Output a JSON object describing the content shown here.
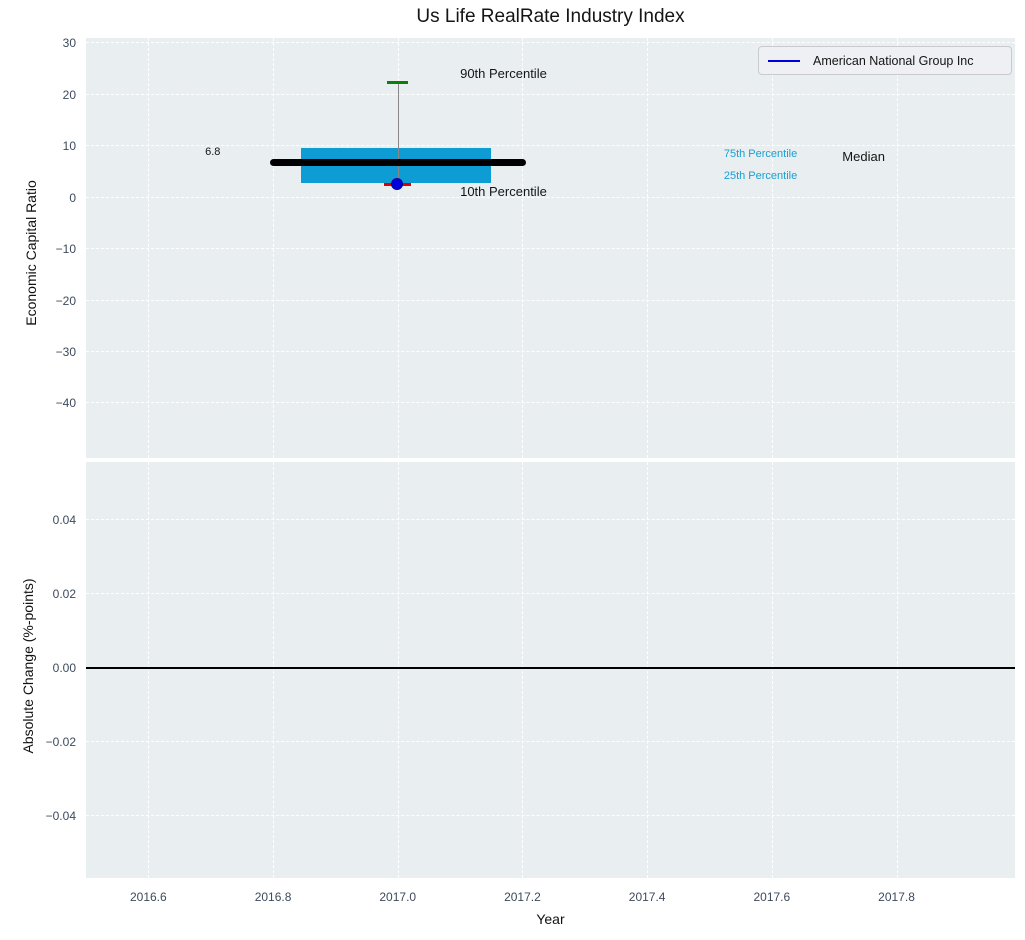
{
  "title": "Us Life RealRate Industry Index",
  "legend": {
    "label": "American National Group Inc",
    "line_color": "#0000dd"
  },
  "colors": {
    "axes_background": "#e9eef0",
    "grid": "#ffffff",
    "box_fill": "#0d9cd3",
    "median_line": "#000000",
    "p90_tick": "#0a7f0a",
    "p10_tick": "#dd0000",
    "marker_fill": "#0000dd",
    "marker_edge": "#0000a0",
    "percentile_label": "#18a0d4",
    "tick_label": "#3d4a5c",
    "zero_line": "#000000",
    "whisker_stem": "#888888"
  },
  "chart_data": [
    {
      "type": "box_percentile",
      "ylabel": "Economic Capital Ratio",
      "ylim": [
        -50.6,
        31.0
      ],
      "yticks": [
        30,
        20,
        10,
        0,
        -10,
        -20,
        -30,
        -40
      ],
      "ytick_labels": [
        "30",
        "20",
        "10",
        "0",
        "−10",
        "−20",
        "−30",
        "−40"
      ],
      "xlim": [
        2016.5,
        2017.99
      ],
      "xgrid": [
        2016.6,
        2016.8,
        2017.0,
        2017.2,
        2017.4,
        2017.6,
        2017.8
      ],
      "grid": true,
      "legend_position": "upper right",
      "series": {
        "name": "American National Group Inc",
        "x": 2017.0,
        "company_value": 2.5,
        "p10": 2.6,
        "p25": 2.9,
        "median": 6.8,
        "p75": 9.6,
        "p90": 22.3,
        "box_left": 2016.845,
        "box_right": 2017.149,
        "median_left": 2016.795,
        "median_right": 2017.205,
        "p90_halfwidth": 0.017,
        "p10_halfwidth": 0.022
      },
      "annotations": [
        {
          "text": "90th Percentile",
          "x": 2017.1,
          "y": 25.4,
          "color": "#151515",
          "size": 13
        },
        {
          "text": "10th Percentile",
          "x": 2017.1,
          "y": 2.45,
          "color": "#151515",
          "size": 13
        },
        {
          "text": "6.8",
          "x": 2016.691,
          "y": 10.3,
          "color": "#151515",
          "size": 11
        },
        {
          "text": "75th Percentile",
          "x": 2017.523,
          "y": 9.9,
          "color": "#18a0d4",
          "size": 11
        },
        {
          "text": "25th Percentile",
          "x": 2017.523,
          "y": 5.6,
          "color": "#18a0d4",
          "size": 11
        },
        {
          "text": "Median",
          "x": 2017.713,
          "y": 9.2,
          "color": "#151515",
          "size": 13
        }
      ]
    },
    {
      "type": "line",
      "ylabel": "Absolute Change (%-points)",
      "xlabel": "Year",
      "ylim": [
        -0.0566,
        0.0555
      ],
      "yticks": [
        0.04,
        0.02,
        0.0,
        -0.02,
        -0.04
      ],
      "ytick_labels": [
        "0.04",
        "0.02",
        "0.00",
        "−0.02",
        "−0.04"
      ],
      "xlim": [
        2016.5,
        2017.99
      ],
      "xgrid": [
        2016.6,
        2016.8,
        2017.0,
        2017.2,
        2017.4,
        2017.6,
        2017.8
      ],
      "xticks": [
        2016.6,
        2016.8,
        2017.0,
        2017.2,
        2017.4,
        2017.6,
        2017.8
      ],
      "xtick_labels": [
        "2016.6",
        "2016.8",
        "2017.0",
        "2017.2",
        "2017.4",
        "2017.6",
        "2017.8"
      ],
      "grid": true,
      "zero_line": 0.0
    }
  ]
}
